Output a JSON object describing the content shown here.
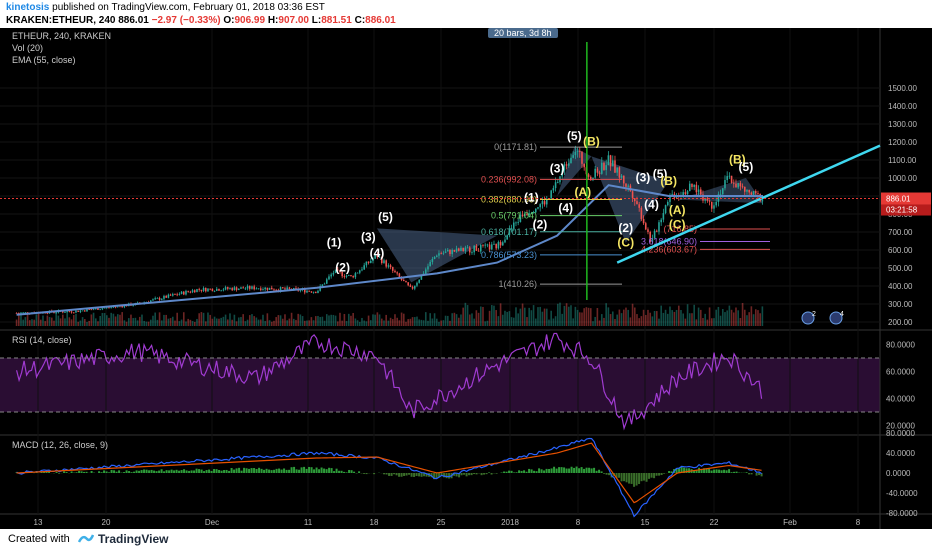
{
  "header": {
    "user": "kinetosis",
    "published": "published on TradingView.com, February 01, 2018 03:36 EST",
    "symbol": "KRAKEN:ETHEUR, 240",
    "last": "886.01",
    "change": "−2.97 (−0.33%)",
    "ohlc_o_label": "O:",
    "ohlc_o": "906.99",
    "ohlc_h_label": "H:",
    "ohlc_h": "907.00",
    "ohlc_l_label": "L:",
    "ohlc_l": "881.51",
    "ohlc_c_label": "C:",
    "ohlc_c": "886.01"
  },
  "legend": {
    "line1": "ETHEUR, 240, KRAKEN",
    "line2": "Vol (20)",
    "line3": "EMA (55, close)",
    "replay_badge": "20 bars, 3d 8h"
  },
  "footer": {
    "created": "Created with",
    "brand": "TradingView"
  },
  "colors": {
    "up": "#26a69a",
    "down": "#ef5350",
    "ema": "#5e88c9",
    "rsi": "#a03bd1",
    "macd": "#2962ff",
    "signal": "#e65100",
    "trend": "#3fd8f0",
    "vline": "#1fb81f",
    "wave_white": "#ffffff",
    "wave_yellow": "#f5e663"
  },
  "chart_data": [
    {
      "type": "line",
      "title": "ETHEUR, 240, KRAKEN",
      "ylim": [
        150,
        1550
      ],
      "y_ticks": [
        "1500.00",
        "1400.00",
        "1300.00",
        "1200.00",
        "1100.00",
        "1000.00",
        "900.00",
        "800.00",
        "700.00",
        "600.00",
        "500.00",
        "400.00",
        "300.00",
        "200.00"
      ],
      "x_ticks": [
        "13",
        "20",
        "Dec",
        "11",
        "18",
        "25",
        "2018",
        "8",
        "15",
        "22",
        "Feb",
        "8"
      ],
      "price_badge": "886.01",
      "countdown_badge": "03:21:58",
      "series": [
        {
          "name": "ETHEUR",
          "x": [
            "Nov 6",
            "Nov 13",
            "Nov 20",
            "Nov 27",
            "Dec 4",
            "Dec 8",
            "Dec 11",
            "Dec 13",
            "Dec 15",
            "Dec 18",
            "Dec 22",
            "Dec 25",
            "Dec 28",
            "Jan 1",
            "Jan 4",
            "Jan 7",
            "Jan 10",
            "Jan 12",
            "Jan 14",
            "Jan 17",
            "Jan 19",
            "Jan 21",
            "Jan 24",
            "Jan 26",
            "Jan 28",
            "Jan 30",
            "Feb 1"
          ],
          "values": [
            250,
            260,
            300,
            380,
            390,
            380,
            370,
            480,
            450,
            570,
            380,
            580,
            600,
            620,
            800,
            880,
            1171.81,
            1000,
            1100,
            900,
            640,
            900,
            950,
            850,
            1000,
            920,
            886
          ]
        },
        {
          "name": "EMA (55, close)",
          "x": [
            "Nov 6",
            "Nov 27",
            "Dec 11",
            "Dec 25",
            "Jan 1",
            "Jan 8",
            "Jan 14",
            "Jan 21",
            "Feb 1"
          ],
          "values": [
            240,
            330,
            390,
            470,
            530,
            680,
            960,
            900,
            900
          ]
        }
      ],
      "fib_levels": [
        {
          "label": "0(1171.81)",
          "value": 1171.81
        },
        {
          "label": "0.236(992.08)",
          "value": 992.08
        },
        {
          "label": "0.382(880.90)",
          "value": 880.9
        },
        {
          "label": "0.5(791.04)",
          "value": 791.04
        },
        {
          "label": "0.618(701.17)",
          "value": 701.17
        },
        {
          "label": "0.786(573.23)",
          "value": 573.23
        },
        {
          "label": "1(410.26)",
          "value": 410.26
        },
        {
          "label": "(716.85)",
          "value": 716.85
        },
        {
          "label": "3.618(646.90)",
          "value": 646.9
        },
        {
          "label": "4.236(603.67)",
          "value": 603.67
        }
      ],
      "wave_labels": [
        {
          "text": "(1)",
          "color": "white",
          "x": "Dec 13",
          "y": 620
        },
        {
          "text": "(2)",
          "color": "white",
          "x": "Dec 14",
          "y": 480
        },
        {
          "text": "(3)",
          "color": "white",
          "x": "Dec 17",
          "y": 650
        },
        {
          "text": "(4)",
          "color": "white",
          "x": "Dec 18",
          "y": 560
        },
        {
          "text": "(5)",
          "color": "white",
          "x": "Dec 19",
          "y": 760
        },
        {
          "text": "(1)",
          "color": "white",
          "x": "Jan 5",
          "y": 870
        },
        {
          "text": "(2)",
          "color": "white",
          "x": "Jan 6",
          "y": 720
        },
        {
          "text": "(3)",
          "color": "white",
          "x": "Jan 8",
          "y": 1030
        },
        {
          "text": "(4)",
          "color": "white",
          "x": "Jan 9",
          "y": 810
        },
        {
          "text": "(5)",
          "color": "white",
          "x": "Jan 10",
          "y": 1210
        },
        {
          "text": "(A)",
          "color": "yellow",
          "x": "Jan 11",
          "y": 900
        },
        {
          "text": "(B)",
          "color": "yellow",
          "x": "Jan 12",
          "y": 1180
        },
        {
          "text": "(2)",
          "color": "white",
          "x": "Jan 16",
          "y": 700
        },
        {
          "text": "(C)",
          "color": "yellow",
          "x": "Jan 16",
          "y": 620
        },
        {
          "text": "(3)",
          "color": "white",
          "x": "Jan 18",
          "y": 980
        },
        {
          "text": "(4)",
          "color": "white",
          "x": "Jan 19",
          "y": 830
        },
        {
          "text": "(5)",
          "color": "white",
          "x": "Jan 20",
          "y": 1000
        },
        {
          "text": "(B)",
          "color": "yellow",
          "x": "Jan 21",
          "y": 960
        },
        {
          "text": "(A)",
          "color": "yellow",
          "x": "Jan 22",
          "y": 800
        },
        {
          "text": "(C)",
          "color": "yellow",
          "x": "Jan 22",
          "y": 720
        },
        {
          "text": "(B)",
          "color": "yellow",
          "x": "Jan 29",
          "y": 1080
        },
        {
          "text": "(5)",
          "color": "white",
          "x": "Jan 30",
          "y": 1040
        }
      ]
    },
    {
      "type": "bar",
      "title": "Vol (20)",
      "note": "volume histogram under price",
      "badges": [
        "2",
        "4"
      ]
    },
    {
      "type": "line",
      "title": "RSI (14, close)",
      "ylim": [
        15,
        95
      ],
      "y_ticks": [
        "80.0000",
        "60.0000",
        "40.0000",
        "20.0000"
      ],
      "bands": [
        70,
        30
      ],
      "series": [
        {
          "name": "RSI",
          "x": [
            "Nov 6",
            "Nov 20",
            "Dec 4",
            "Dec 11",
            "Dec 18",
            "Dec 22",
            "Jan 1",
            "Jan 8",
            "Jan 12",
            "Jan 16",
            "Jan 22",
            "Jan 28",
            "Feb 1"
          ],
          "values": [
            60,
            75,
            55,
            82,
            72,
            30,
            65,
            85,
            70,
            20,
            55,
            72,
            45
          ]
        }
      ]
    },
    {
      "type": "line",
      "title": "MACD (12, 26, close, 9)",
      "ylim": [
        -95,
        85
      ],
      "y_ticks": [
        "80.0000",
        "40.0000",
        "0.0000",
        "-40.0000",
        "-80.0000"
      ],
      "series": [
        {
          "name": "MACD",
          "x": [
            "Nov 6",
            "Dec 11",
            "Dec 18",
            "Dec 25",
            "Jan 8",
            "Jan 12",
            "Jan 17",
            "Jan 22",
            "Jan 28",
            "Feb 1"
          ],
          "values": [
            0,
            40,
            30,
            -10,
            50,
            70,
            -85,
            10,
            20,
            0
          ]
        },
        {
          "name": "Signal",
          "x": [
            "Nov 6",
            "Dec 11",
            "Dec 18",
            "Dec 25",
            "Jan 8",
            "Jan 12",
            "Jan 17",
            "Jan 22",
            "Jan 28",
            "Feb 1"
          ],
          "values": [
            0,
            30,
            32,
            0,
            40,
            60,
            -60,
            0,
            15,
            5
          ]
        }
      ]
    }
  ],
  "rsi_label": "RSI (14, close)",
  "macd_label": "MACD (12, 26, close, 9)"
}
